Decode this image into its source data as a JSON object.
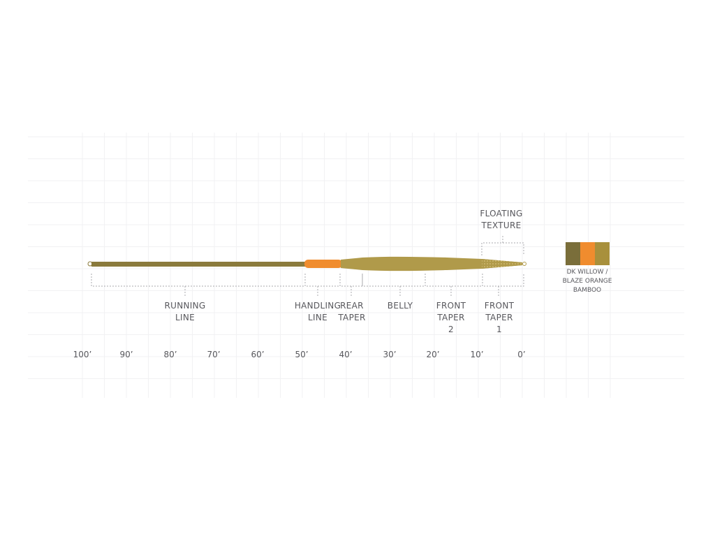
{
  "sections": [
    {
      "key": "running",
      "lines": [
        "RUNNING",
        "LINE"
      ]
    },
    {
      "key": "handling",
      "lines": [
        "HANDLING",
        "LINE"
      ]
    },
    {
      "key": "rear",
      "lines": [
        "REAR",
        "TAPER"
      ]
    },
    {
      "key": "belly",
      "lines": [
        "BELLY"
      ]
    },
    {
      "key": "front2",
      "lines": [
        "FRONT",
        "TAPER",
        "2"
      ]
    },
    {
      "key": "front1",
      "lines": [
        "FRONT",
        "TAPER",
        "1"
      ]
    }
  ],
  "floating": {
    "lines": [
      "FLOATING",
      "TEXTURE"
    ]
  },
  "axis_ticks": [
    "100’",
    "90’",
    "80’",
    "70’",
    "60’",
    "50’",
    "40’",
    "30’",
    "20’",
    "10’",
    "0’"
  ],
  "colorway": {
    "swatches": [
      "#7a6e3a",
      "#f08c2e",
      "#a8903c"
    ],
    "lines": [
      "DK WILLOW /",
      "BLAZE ORANGE",
      "BAMBOO"
    ]
  },
  "line_colors": {
    "running": "#8a7a3c",
    "handling": "#f08c2e",
    "head": "#b09a4a"
  }
}
